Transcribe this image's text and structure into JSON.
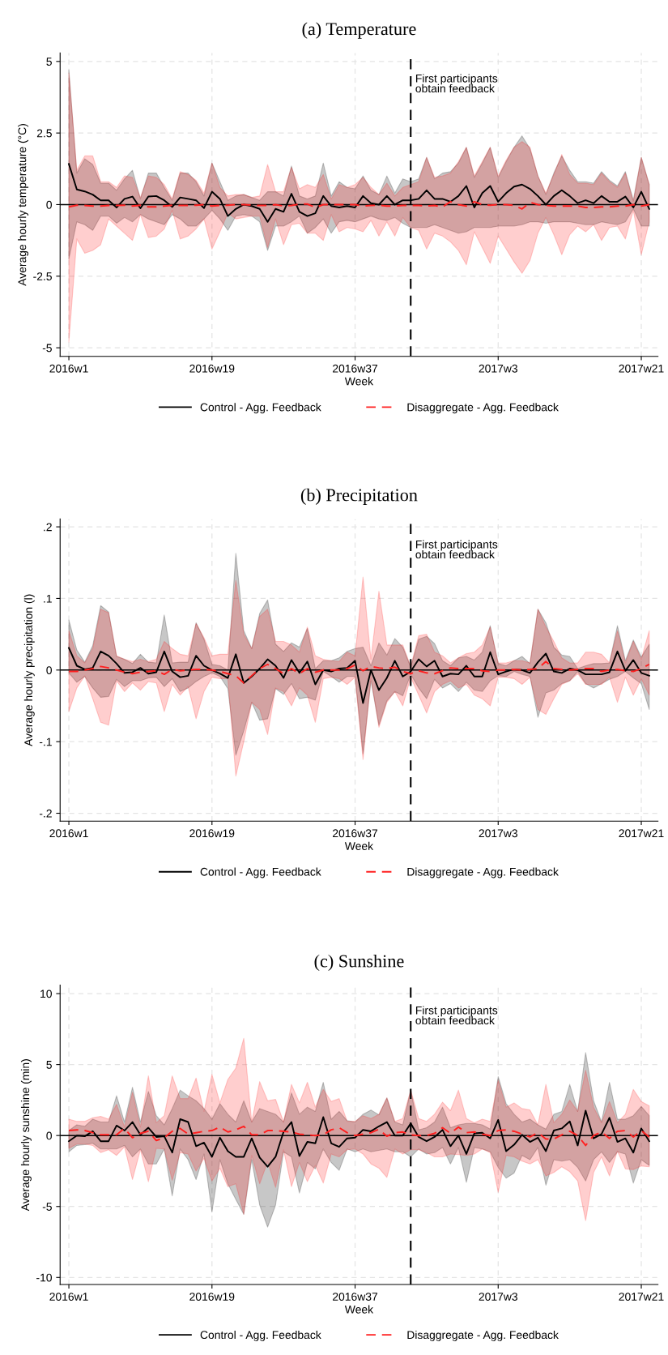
{
  "chart_data": [
    {
      "type": "line",
      "title": "(a) Temperature",
      "xlabel": "Week",
      "ylabel": "Average hourly temperature (°C)",
      "categories": [
        "2016w1",
        null,
        null,
        null,
        null,
        null,
        null,
        null,
        null,
        null,
        null,
        null,
        null,
        null,
        null,
        null,
        null,
        null,
        "2016w19",
        null,
        null,
        null,
        null,
        null,
        null,
        null,
        null,
        null,
        null,
        null,
        null,
        null,
        null,
        null,
        null,
        null,
        "2016w37",
        null,
        null,
        null,
        null,
        null,
        null,
        null,
        null,
        null,
        null,
        null,
        null,
        null,
        null,
        null,
        null,
        null,
        "2017w3",
        null,
        null,
        null,
        null,
        null,
        null,
        null,
        null,
        null,
        null,
        null,
        null,
        null,
        null,
        null,
        null,
        null,
        "2017w21",
        null
      ],
      "ylim": [
        -5.3,
        5.3
      ],
      "yticks": [
        -5,
        -2.5,
        0,
        2.5,
        5
      ],
      "grid": true,
      "legend": "bottom",
      "ref_lines": [
        {
          "axis": "y",
          "value": 0,
          "color": "#000000",
          "line_style": "solid"
        }
      ],
      "annotations": [
        "First participants\nobtain feedback"
      ],
      "series": [
        {
          "name": "Control - Agg. Feedback",
          "color": "#000000",
          "line_style": "solid",
          "values": [
            1.42,
            0.53,
            0.46,
            0.35,
            0.15,
            0.15,
            -0.1,
            0.2,
            0.28,
            -0.13,
            0.28,
            0.3,
            0.15,
            -0.08,
            0.25,
            0.2,
            0.15,
            -0.12,
            0.45,
            0.2,
            -0.4,
            -0.15,
            0.0,
            -0.05,
            -0.15,
            -0.6,
            -0.15,
            -0.25,
            0.38,
            -0.25,
            -0.4,
            -0.3,
            0.3,
            -0.05,
            -0.1,
            -0.05,
            -0.1,
            0.3,
            0.05,
            0.0,
            0.3,
            0.0,
            0.15,
            0.15,
            0.2,
            0.5,
            0.2,
            0.2,
            0.1,
            0.3,
            0.65,
            -0.1,
            0.4,
            0.65,
            0.1,
            0.4,
            0.63,
            0.7,
            0.55,
            0.3,
            0.0,
            0.3,
            0.5,
            0.3,
            0.05,
            0.15,
            0.05,
            0.3,
            0.1,
            0.1,
            0.28,
            -0.1,
            0.45,
            -0.15
          ],
          "upper": [
            4.7,
            1.1,
            1.6,
            1.4,
            0.75,
            0.75,
            0.5,
            0.9,
            1.2,
            0.2,
            1.1,
            1.1,
            0.6,
            0.15,
            1.1,
            1.1,
            0.8,
            0.3,
            1.45,
            0.8,
            0.15,
            0.3,
            0.35,
            0.25,
            0.15,
            0.45,
            0.45,
            0.3,
            1.35,
            0.3,
            0.2,
            0.3,
            1.45,
            0.3,
            0.8,
            0.6,
            0.55,
            1.0,
            0.5,
            0.35,
            1.0,
            0.4,
            0.9,
            0.8,
            0.9,
            1.65,
            0.9,
            1.1,
            1.15,
            1.45,
            2.0,
            0.95,
            1.45,
            2.0,
            0.95,
            1.5,
            2.0,
            2.4,
            1.95,
            1.0,
            0.35,
            1.1,
            1.7,
            1.2,
            0.8,
            0.8,
            0.75,
            1.15,
            0.85,
            0.65,
            1.15,
            0.15,
            1.65,
            0.7
          ],
          "lower": [
            -1.9,
            -0.6,
            -0.7,
            -0.9,
            -0.4,
            -0.4,
            -0.65,
            -0.45,
            -0.6,
            -0.35,
            -0.5,
            -0.6,
            -0.7,
            -0.35,
            -0.5,
            -0.75,
            -0.75,
            -0.5,
            -0.2,
            -0.5,
            -0.9,
            -0.4,
            -0.35,
            -0.4,
            -0.6,
            -1.6,
            -0.75,
            -0.75,
            -0.6,
            -0.4,
            -1.0,
            -0.8,
            -0.5,
            -1.0,
            -0.6,
            -0.55,
            -0.6,
            -0.5,
            -0.4,
            -0.5,
            -0.55,
            -0.45,
            -0.65,
            -0.8,
            -0.8,
            -0.8,
            -0.7,
            -0.8,
            -0.9,
            -1.0,
            -0.95,
            -0.8,
            -0.8,
            -0.8,
            -0.75,
            -0.75,
            -0.75,
            -0.7,
            -0.6,
            -0.6,
            -0.65,
            -0.6,
            -0.6,
            -0.6,
            -0.65,
            -0.7,
            -0.7,
            -0.6,
            -0.65,
            -0.7,
            -0.6,
            -0.15,
            -0.75,
            -0.75
          ]
        },
        {
          "name": "Disaggregate - Agg. Feedback",
          "color": "#ff2020",
          "line_style": "dashed",
          "values": [
            -0.08,
            -0.02,
            -0.03,
            -0.05,
            -0.05,
            -0.03,
            -0.03,
            -0.02,
            -0.05,
            -0.02,
            -0.08,
            -0.08,
            -0.05,
            -0.02,
            -0.03,
            -0.03,
            -0.02,
            0.0,
            -0.05,
            -0.03,
            -0.02,
            0.0,
            0.0,
            -0.02,
            -0.03,
            -0.03,
            0.0,
            -0.05,
            -0.03,
            0.02,
            0.02,
            -0.1,
            0.0,
            0.0,
            0.0,
            0.0,
            0.0,
            -0.05,
            -0.03,
            -0.02,
            -0.05,
            -0.05,
            -0.03,
            -0.03,
            -0.03,
            -0.05,
            -0.03,
            -0.08,
            0.1,
            0.0,
            -0.05,
            0.1,
            0.0,
            -0.02,
            0.0,
            0.0,
            -0.03,
            -0.15,
            0.08,
            0.0,
            -0.03,
            -0.05,
            -0.05,
            -0.05,
            -0.05,
            -0.1,
            -0.1,
            -0.08,
            -0.08,
            -0.05,
            -0.05,
            0.0,
            -0.05,
            0.0
          ],
          "upper": [
            4.6,
            1.2,
            1.7,
            1.7,
            0.8,
            0.8,
            0.6,
            1.0,
            0.95,
            0.25,
            1.0,
            0.95,
            0.7,
            0.2,
            1.15,
            1.05,
            0.85,
            0.4,
            1.45,
            0.6,
            0.3,
            0.35,
            0.35,
            0.25,
            0.3,
            1.4,
            0.45,
            0.45,
            1.3,
            0.55,
            0.7,
            0.6,
            1.05,
            0.2,
            0.7,
            0.6,
            0.7,
            0.95,
            0.6,
            0.35,
            0.75,
            0.3,
            0.6,
            0.7,
            0.8,
            1.65,
            0.95,
            1.0,
            1.1,
            1.5,
            2.0,
            1.0,
            1.5,
            2.0,
            1.0,
            1.55,
            2.0,
            2.2,
            2.0,
            1.0,
            0.4,
            1.05,
            1.75,
            1.05,
            0.75,
            0.75,
            0.7,
            1.1,
            0.8,
            0.6,
            1.1,
            0.1,
            1.65,
            0.7
          ],
          "lower": [
            -4.8,
            -1.2,
            -1.7,
            -1.6,
            -1.4,
            -0.5,
            -0.75,
            -1.0,
            -1.25,
            -0.35,
            -1.15,
            -1.1,
            -0.85,
            -0.2,
            -1.2,
            -1.1,
            -0.85,
            -0.5,
            -1.55,
            -0.95,
            -0.3,
            -0.5,
            -0.45,
            -0.4,
            -0.4,
            -1.5,
            -0.5,
            -1.4,
            -0.7,
            -0.65,
            -1.0,
            -1.0,
            -1.25,
            -0.35,
            -0.95,
            -0.8,
            -0.85,
            -0.95,
            -0.55,
            -1.1,
            -0.6,
            -1.1,
            -0.45,
            -0.8,
            -0.9,
            -1.55,
            -1.0,
            -1.1,
            -1.3,
            -1.6,
            -2.1,
            -0.95,
            -1.5,
            -2.05,
            -1.1,
            -1.55,
            -2.0,
            -2.4,
            -1.95,
            -1.0,
            -0.45,
            -1.05,
            -1.75,
            -1.05,
            -0.75,
            -0.95,
            -0.7,
            -1.25,
            -0.8,
            -0.75,
            -1.2,
            -0.2,
            -1.75,
            -0.6
          ]
        }
      ]
    },
    {
      "type": "line",
      "title": "(b) Precipitation",
      "xlabel": "Week",
      "ylabel": "Average hourly precipitation (l)",
      "categories": [
        "2016w1",
        null,
        null,
        null,
        null,
        null,
        null,
        null,
        null,
        null,
        null,
        null,
        null,
        null,
        null,
        null,
        null,
        null,
        "2016w19",
        null,
        null,
        null,
        null,
        null,
        null,
        null,
        null,
        null,
        null,
        null,
        null,
        null,
        null,
        null,
        null,
        null,
        "2016w37",
        null,
        null,
        null,
        null,
        null,
        null,
        null,
        null,
        null,
        null,
        null,
        null,
        null,
        null,
        null,
        null,
        null,
        "2017w3",
        null,
        null,
        null,
        null,
        null,
        null,
        null,
        null,
        null,
        null,
        null,
        null,
        null,
        null,
        null,
        null,
        null,
        "2017w21",
        null
      ],
      "ylim": [
        -0.211,
        0.211
      ],
      "yticks": [
        {
          "value": -0.2,
          "label": "-.2"
        },
        {
          "value": -0.1,
          "label": "-.1"
        },
        0,
        {
          "value": 0.1,
          "label": ".1"
        },
        {
          "value": 0.2,
          "label": ".2"
        }
      ],
      "grid": true,
      "legend": "bottom",
      "ref_lines": [
        {
          "axis": "y",
          "value": 0,
          "color": "#000000",
          "line_style": "solid"
        }
      ],
      "annotations": [
        "First participants\nobtain feedback"
      ],
      "series": [
        {
          "name": "Control - Agg. Feedback",
          "color": "#000000",
          "line_style": "solid",
          "values": [
            0.031,
            0.006,
            0.001,
            0.003,
            0.026,
            0.02,
            0.009,
            -0.004,
            -0.003,
            0.003,
            -0.005,
            -0.003,
            0.026,
            -0.002,
            -0.01,
            -0.008,
            0.02,
            0.006,
            0,
            -0.005,
            -0.011,
            0.022,
            -0.018,
            -0.009,
            0.002,
            0.015,
            0.006,
            -0.011,
            0.014,
            -0.004,
            0.012,
            -0.02,
            0,
            -0.002,
            0.002,
            0.003,
            0.013,
            -0.046,
            0,
            -0.028,
            -0.011,
            0.013,
            -0.009,
            -0.002,
            0.015,
            0.005,
            0.013,
            -0.009,
            -0.005,
            -0.006,
            0.006,
            -0.009,
            -0.009,
            0.025,
            -0.006,
            -0.002,
            0.001,
            0,
            -0.004,
            0.011,
            0.023,
            -0.002,
            -0.004,
            0.002,
            0,
            -0.006,
            -0.006,
            -0.006,
            -0.003,
            0.026,
            -0.001,
            0.014,
            -0.004,
            -0.008
          ],
          "upper": [
            0.07,
            0.028,
            0.011,
            0.034,
            0.09,
            0.081,
            0.019,
            0.015,
            0.009,
            0.022,
            0.011,
            0.01,
            0.077,
            0.01,
            0.011,
            0.011,
            0.066,
            0.043,
            0.008,
            0.006,
            0,
            0.163,
            0.055,
            0.03,
            0.079,
            0.098,
            0.036,
            0.026,
            0.038,
            0.032,
            0.058,
            0.002,
            0.013,
            0.013,
            0.017,
            0.026,
            0.03,
            0.032,
            0.006,
            0.038,
            0.021,
            0.044,
            0.032,
            0.004,
            0.043,
            0.047,
            0.037,
            0.013,
            0.006,
            0.017,
            0.019,
            0.014,
            0.025,
            0.062,
            0.009,
            0.006,
            0.013,
            0.019,
            0.009,
            0.085,
            0.066,
            0.032,
            0.021,
            0.019,
            0.002,
            0.006,
            0.009,
            0.009,
            0.01,
            0.062,
            0.013,
            0.042,
            0.018,
            0.036
          ],
          "lower": [
            -0.004,
            -0.017,
            -0.009,
            -0.025,
            -0.038,
            -0.037,
            -0.013,
            -0.023,
            -0.015,
            -0.015,
            -0.011,
            -0.01,
            -0.023,
            -0.012,
            -0.03,
            -0.025,
            -0.016,
            -0.009,
            -0.004,
            -0.009,
            -0.026,
            -0.119,
            -0.085,
            -0.045,
            -0.07,
            -0.068,
            -0.026,
            -0.034,
            -0.019,
            -0.04,
            -0.038,
            -0.042,
            -0.002,
            -0.009,
            -0.017,
            -0.009,
            -0.009,
            -0.117,
            -0.015,
            -0.077,
            -0.043,
            -0.03,
            -0.036,
            -0.006,
            -0.025,
            -0.04,
            -0.013,
            -0.025,
            -0.019,
            -0.03,
            -0.017,
            -0.028,
            -0.03,
            -0.015,
            -0.008,
            -0.009,
            -0.002,
            -0.006,
            -0.009,
            -0.066,
            -0.032,
            -0.028,
            -0.019,
            -0.015,
            -0.002,
            -0.019,
            -0.025,
            -0.019,
            -0.013,
            -0.009,
            -0.002,
            -0.011,
            -0.019,
            -0.055
          ]
        },
        {
          "name": "Disaggregate - Agg. Feedback",
          "color": "#ff2020",
          "line_style": "dashed",
          "values": [
            -0.002,
            -0.002,
            0,
            0.002,
            0.005,
            0.003,
            0,
            -0.003,
            -0.005,
            -0.003,
            -0.002,
            -0.001,
            -0.006,
            0.001,
            -0.001,
            0,
            0.001,
            0.001,
            0,
            -0.002,
            -0.005,
            -0.008,
            -0.018,
            -0.008,
            0.002,
            0.008,
            0.002,
            -0.005,
            0.002,
            -0.005,
            0.002,
            -0.003,
            0,
            0,
            0,
            0.002,
            0.007,
            -0.001,
            0.005,
            0.003,
            0.002,
            0.004,
            -0.002,
            -0.005,
            -0.001,
            -0.004,
            -0.005,
            -0.001,
            0.003,
            0.002,
            0.002,
            0.002,
            -0.001,
            -0.002,
            0,
            0,
            0.001,
            0,
            0.001,
            0.002,
            0.012,
            0.002,
            0.001,
            0,
            0.001,
            0.002,
            0.002,
            -0.002,
            0,
            0.001,
            -0.001,
            -0.002,
            0.002,
            0.008
          ],
          "upper": [
            0.055,
            0.02,
            0.01,
            0.03,
            0.085,
            0.08,
            0.02,
            0.015,
            0.012,
            0.015,
            0.012,
            0.015,
            0.04,
            0.03,
            0.022,
            0.02,
            0.065,
            0.045,
            0.02,
            0.022,
            0.022,
            0.125,
            0.05,
            0.03,
            0.075,
            0.085,
            0.04,
            0.04,
            0.035,
            0.025,
            0.06,
            0.02,
            0.015,
            0.013,
            0.012,
            0.025,
            0.02,
            0.13,
            0.015,
            0.11,
            0.035,
            0.035,
            0.035,
            0.005,
            0.048,
            0.05,
            0.025,
            0.02,
            0.01,
            0.017,
            0.023,
            0.025,
            0.035,
            0.06,
            0.01,
            0.01,
            0.013,
            0.013,
            0.01,
            0.085,
            0.06,
            0.04,
            0.017,
            0.01,
            0.01,
            0.025,
            0.025,
            0.022,
            0.01,
            0.055,
            0.01,
            0.04,
            0.015,
            0.055
          ],
          "lower": [
            -0.058,
            -0.025,
            -0.008,
            -0.04,
            -0.073,
            -0.077,
            -0.015,
            -0.03,
            -0.018,
            -0.028,
            -0.016,
            -0.018,
            -0.058,
            -0.02,
            -0.035,
            -0.023,
            -0.068,
            -0.03,
            -0.01,
            -0.012,
            -0.012,
            -0.148,
            -0.1,
            -0.045,
            -0.055,
            -0.09,
            -0.025,
            -0.03,
            -0.05,
            -0.025,
            -0.035,
            -0.073,
            -0.012,
            -0.01,
            -0.012,
            -0.02,
            -0.01,
            -0.125,
            -0.01,
            -0.08,
            -0.045,
            -0.03,
            -0.05,
            -0.01,
            -0.035,
            -0.06,
            -0.03,
            -0.02,
            -0.015,
            -0.025,
            -0.02,
            -0.035,
            -0.04,
            -0.05,
            -0.01,
            -0.01,
            -0.012,
            -0.02,
            -0.01,
            -0.055,
            -0.062,
            -0.04,
            -0.02,
            -0.015,
            -0.005,
            -0.02,
            -0.02,
            -0.02,
            -0.01,
            -0.045,
            -0.01,
            -0.035,
            -0.012,
            -0.035
          ]
        }
      ]
    },
    {
      "type": "line",
      "title": "(c) Sunshine",
      "xlabel": "Week",
      "ylabel": "Average hourly sunshine (min)",
      "categories": [
        "2016w1",
        null,
        null,
        null,
        null,
        null,
        null,
        null,
        null,
        null,
        null,
        null,
        null,
        null,
        null,
        null,
        null,
        null,
        "2016w19",
        null,
        null,
        null,
        null,
        null,
        null,
        null,
        null,
        null,
        null,
        null,
        null,
        null,
        null,
        null,
        null,
        null,
        "2016w37",
        null,
        null,
        null,
        null,
        null,
        null,
        null,
        null,
        null,
        null,
        null,
        null,
        null,
        null,
        null,
        null,
        null,
        "2017w3",
        null,
        null,
        null,
        null,
        null,
        null,
        null,
        null,
        null,
        null,
        null,
        null,
        null,
        null,
        null,
        null,
        null,
        "2017w21",
        null
      ],
      "ylim": [
        -10.5,
        10.6
      ],
      "yticks": [
        -10,
        -5,
        0,
        5,
        10
      ],
      "grid": true,
      "legend": "bottom",
      "ref_lines": [
        {
          "axis": "y",
          "value": 0,
          "color": "#000000",
          "line_style": "solid"
        }
      ],
      "annotations": [
        "First participants\nobtain feedback"
      ],
      "series": [
        {
          "name": "Control - Agg. Feedback",
          "color": "#000000",
          "line_style": "solid",
          "values": [
            -0.4,
            0,
            -0.05,
            0.3,
            -0.4,
            -0.4,
            0.7,
            0.35,
            0.95,
            0.05,
            0.55,
            -0.1,
            -0.05,
            -1.2,
            1.15,
            0.95,
            -0.75,
            -0.5,
            -1.5,
            -0.15,
            -1.1,
            -1.5,
            -1.5,
            -0.2,
            -1.55,
            -2.2,
            -1.5,
            0.25,
            0.95,
            -1.45,
            -0.45,
            -0.55,
            1.3,
            -0.55,
            -0.8,
            -0.2,
            -0.15,
            0.4,
            0.3,
            0.65,
            0.95,
            0,
            0,
            0.85,
            -0.1,
            -0.4,
            -0.1,
            0.4,
            -0.75,
            0,
            -1.3,
            0.15,
            0.2,
            -0.2,
            1.1,
            -1.1,
            -0.65,
            0.05,
            -0.45,
            -0.15,
            -1.1,
            0.35,
            0.5,
            1.0,
            -0.7,
            1.75,
            -0.2,
            0.1,
            1.25,
            -0.45,
            -0.2,
            -1.2,
            0.5,
            -0.4
          ],
          "upper": [
            0.35,
            0.75,
            0.65,
            1.15,
            0.95,
            0.95,
            2.8,
            0.95,
            3.4,
            0.95,
            3.1,
            1.4,
            0.75,
            1.9,
            3.2,
            2.8,
            2.45,
            1.9,
            1.15,
            2.25,
            1.5,
            0.95,
            2.45,
            0.95,
            1.9,
            1.7,
            1.5,
            0.95,
            3.0,
            1.5,
            2.0,
            1.7,
            3.75,
            1.15,
            1.7,
            1.05,
            0.95,
            1.5,
            1.8,
            1.45,
            2.65,
            0.95,
            0.75,
            3.2,
            0.4,
            0.55,
            0.95,
            2.0,
            0.55,
            0.75,
            0.85,
            0.85,
            0.75,
            0.45,
            4.15,
            2.25,
            1.5,
            0.95,
            1.15,
            0.75,
            0.45,
            1.5,
            1.7,
            3.6,
            1.7,
            5.85,
            2.45,
            0.95,
            3.75,
            1.15,
            1.15,
            1.4,
            2.05,
            1.4
          ],
          "lower": [
            -1.15,
            -0.7,
            -0.65,
            -0.55,
            -0.95,
            -0.95,
            -0.95,
            -0.7,
            -1.5,
            -0.95,
            -2.0,
            -2.0,
            -0.95,
            -4.25,
            -0.95,
            -1.7,
            -3.1,
            -1.3,
            -5.4,
            -1.7,
            -3.4,
            -4.5,
            -5.55,
            -1.7,
            -4.9,
            -6.45,
            -4.9,
            -1.15,
            -1.5,
            -4.05,
            -1.9,
            -2.35,
            -0.95,
            -1.9,
            -2.45,
            -0.95,
            -1.15,
            -0.95,
            -1.15,
            -1.05,
            -0.95,
            -1.15,
            -1.15,
            -1.5,
            -0.95,
            -1.3,
            -1.2,
            -0.85,
            -2.0,
            -0.85,
            -3.3,
            -0.85,
            -0.95,
            -1.15,
            -2.25,
            -3.0,
            -2.65,
            -1.4,
            -1.7,
            -0.85,
            -3.5,
            -1.7,
            -1.8,
            -1.7,
            -2.25,
            -3.2,
            -1.7,
            -1.15,
            -1.9,
            -1.15,
            -1.3,
            -3.35,
            -1.7,
            -2.1
          ]
        },
        {
          "name": "Disaggregate - Agg. Feedback",
          "color": "#ff2020",
          "line_style": "dashed",
          "values": [
            0.35,
            0.4,
            0.35,
            0.2,
            0.05,
            0.05,
            0.05,
            0.5,
            -0.15,
            0.15,
            0.3,
            -0.35,
            -0.15,
            0.3,
            0.5,
            0.1,
            0.2,
            0.3,
            0.35,
            0.6,
            0.25,
            0.4,
            0.65,
            0.05,
            0.05,
            0.35,
            0.35,
            0.3,
            0.25,
            0.1,
            0.05,
            0.0,
            0.05,
            0.4,
            0.55,
            0.2,
            0.0,
            0.1,
            0.2,
            0.45,
            -0.05,
            0.2,
            0.25,
            0.05,
            0.0,
            0.0,
            0.15,
            0.55,
            0.15,
            0.6,
            0.2,
            0.25,
            0.1,
            0.0,
            0.35,
            0.4,
            0.3,
            0.1,
            -0.1,
            0.2,
            -0.25,
            -0.25,
            0.05,
            0.3,
            0.0,
            -0.7,
            0.0,
            0.25,
            -0.2,
            0.3,
            0.35,
            -0.1,
            0.35,
            -0.1
          ],
          "upper": [
            1.15,
            1.0,
            1.0,
            1.25,
            1.35,
            1.15,
            2.2,
            0.6,
            3.05,
            0.6,
            4.2,
            0.9,
            1.4,
            4.2,
            2.6,
            2.6,
            4.05,
            1.7,
            4.3,
            2.3,
            3.95,
            4.75,
            6.85,
            0.95,
            3.8,
            2.45,
            2.55,
            0.95,
            3.6,
            2.3,
            3.75,
            2.0,
            3.25,
            2.4,
            2.6,
            1.0,
            1.0,
            1.4,
            1.2,
            1.5,
            2.65,
            1.0,
            1.2,
            3.2,
            1.2,
            1.0,
            1.5,
            2.35,
            1.75,
            3.2,
            1.2,
            0.9,
            1.15,
            1.0,
            3.9,
            2.0,
            2.3,
            1.9,
            1.8,
            0.75,
            3.6,
            0.9,
            1.5,
            2.5,
            1.7,
            4.6,
            2.0,
            0.9,
            2.4,
            0.9,
            1.5,
            3.25,
            2.4,
            2.1
          ],
          "lower": [
            -0.9,
            -0.6,
            -0.6,
            -0.7,
            -1.2,
            -1.0,
            -1.4,
            -0.8,
            -3.1,
            -1.0,
            -3.25,
            -0.9,
            -0.95,
            -3.15,
            -1.2,
            -1.3,
            -2.5,
            -1.6,
            -3.2,
            -2.3,
            -3.6,
            -3.4,
            -5.55,
            -1.4,
            -3.4,
            -1.85,
            -3.65,
            -1.0,
            -3.6,
            -1.9,
            -3.25,
            -2.1,
            -3.35,
            -1.3,
            -1.5,
            -1.0,
            -0.95,
            -1.3,
            -2.0,
            -2.3,
            -2.95,
            -0.95,
            -1.3,
            -1.0,
            -1.0,
            -1.2,
            -1.5,
            -1.5,
            -1.3,
            -1.35,
            -1.4,
            -1.3,
            -0.95,
            -1.2,
            -4.0,
            -1.4,
            -1.5,
            -1.8,
            -2.0,
            -1.7,
            -2.85,
            -2.6,
            -2.2,
            -2.55,
            -3.2,
            -6.0,
            -2.6,
            -1.5,
            -2.85,
            -1.1,
            -2.35,
            -2.4,
            -2.15,
            -2.2
          ]
        }
      ]
    }
  ]
}
